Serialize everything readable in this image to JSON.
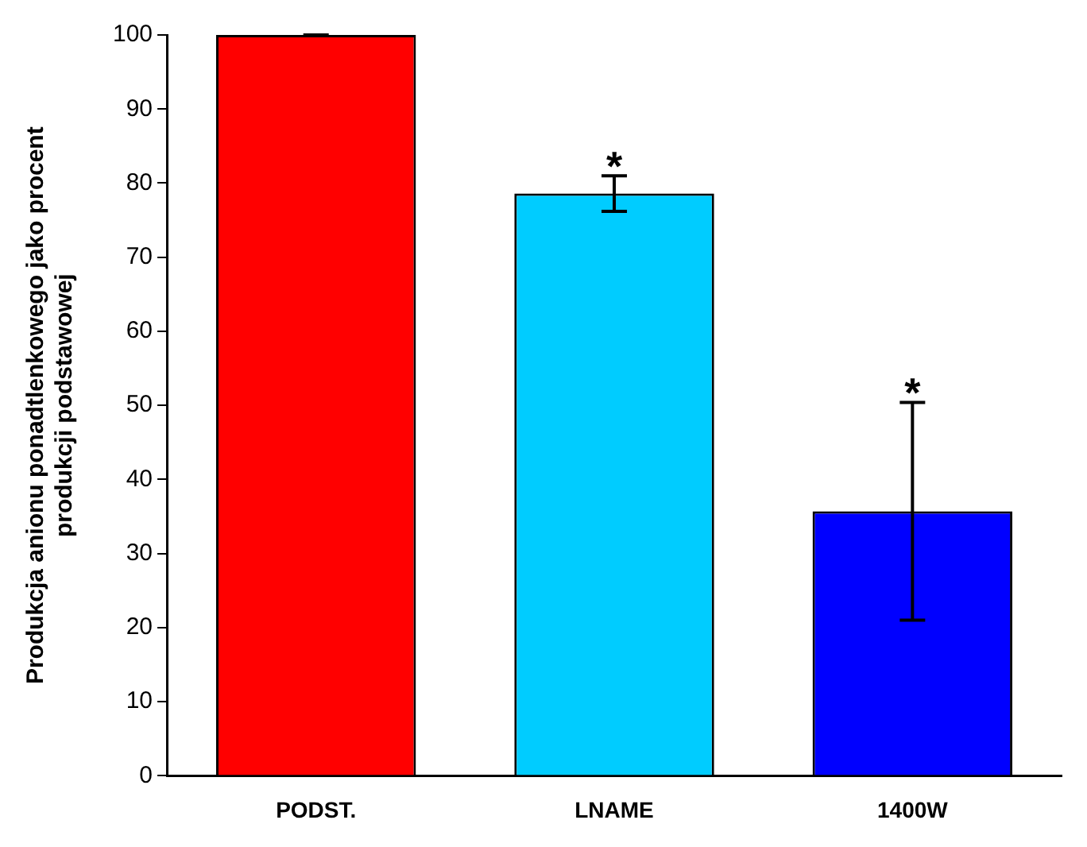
{
  "chart_data": {
    "type": "bar",
    "ylabel": "Produkcja anionu ponadtlenkowego jako procent produkcji podstawowej",
    "categories": [
      "PODST.",
      "LNAME",
      "1400W"
    ],
    "values": [
      100,
      78.6,
      35.7
    ],
    "colors": [
      "#ff0000",
      "#00ccff",
      "#0000ff"
    ],
    "errors": [
      0,
      2.4,
      14.7
    ],
    "ylim": [
      0,
      100
    ],
    "yticks": [
      0,
      10,
      20,
      30,
      40,
      50,
      60,
      70,
      80,
      90,
      100
    ],
    "grid": false,
    "legend": false,
    "annotations": [
      {
        "text": "*",
        "x": "LNAME",
        "y": 81
      },
      {
        "text": "*",
        "x": "1400W",
        "y": 50.4
      }
    ]
  }
}
